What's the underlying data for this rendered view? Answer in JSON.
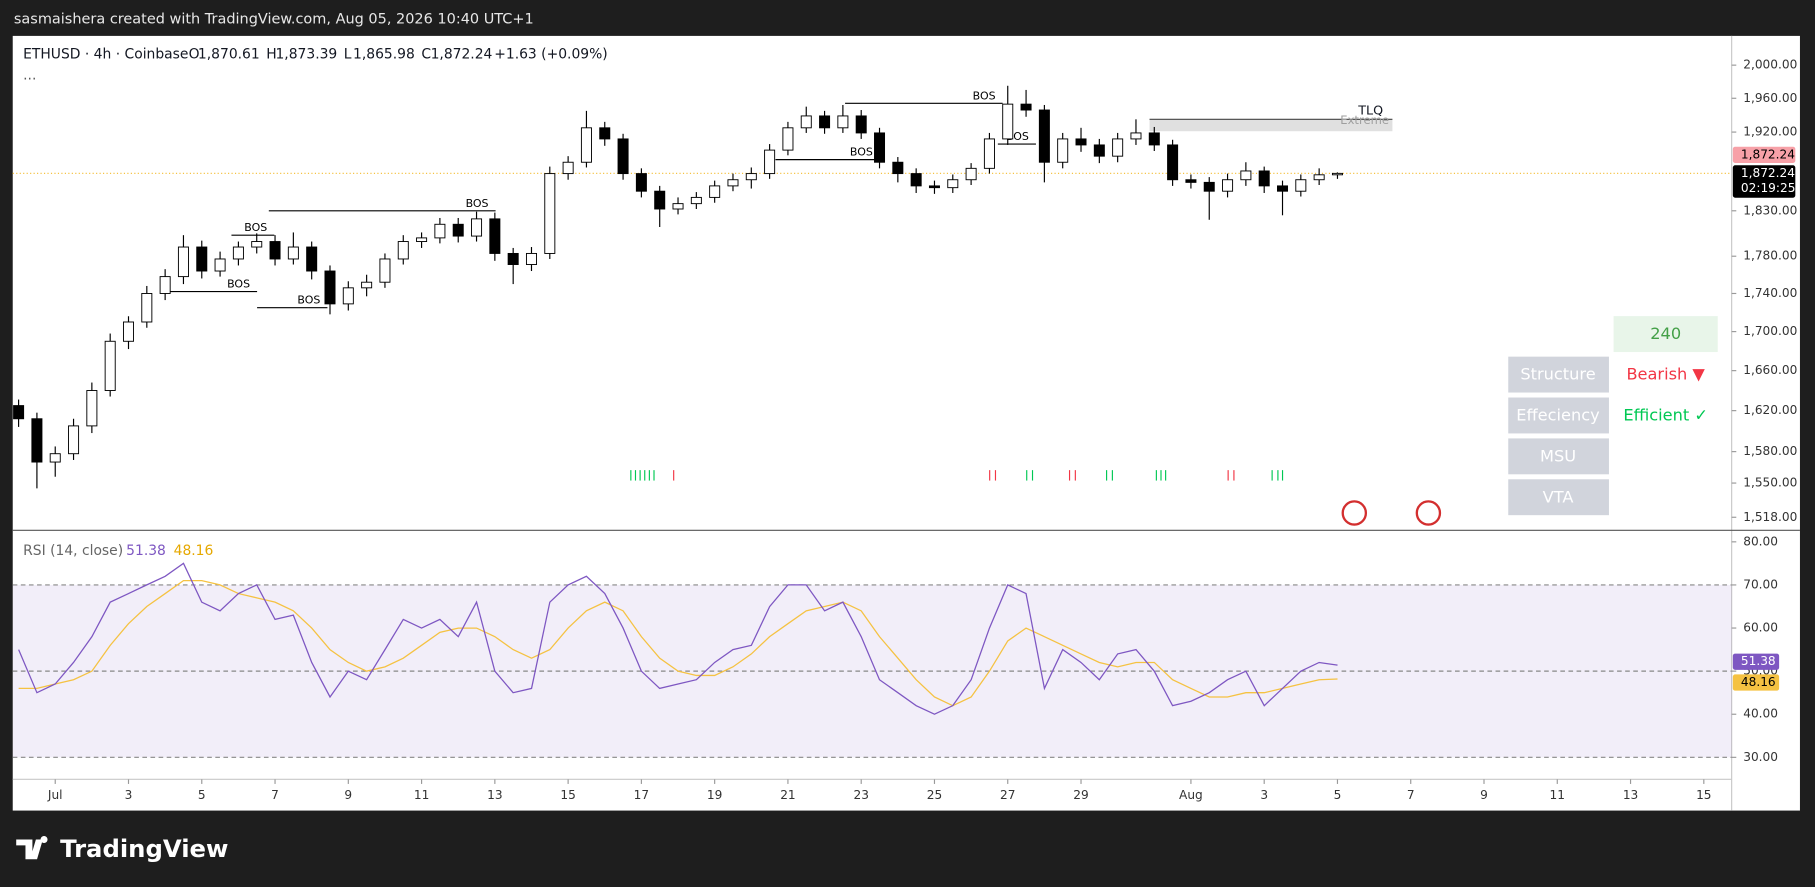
{
  "header": {
    "text": "sasmaishera created with TradingView.com, Aug 05, 2026 10:40 UTC+1"
  },
  "footer": {
    "logo_text": "TradingView"
  },
  "panel": {
    "timeframe": "240",
    "rows": [
      {
        "label": "Structure",
        "value": "Bearish ▼",
        "color": "#f23645"
      },
      {
        "label": "Effeciency",
        "value": "Efficient ✓",
        "color": "#00c853"
      },
      {
        "label": "MSU"
      },
      {
        "label": "VTA"
      }
    ]
  },
  "chart_data": [
    {
      "type": "candlestick",
      "symbol": "ETHUSD · 4h · Coinbase",
      "more": "...",
      "ohlc_legend": [
        {
          "key": "O",
          "label": "1,870.61"
        },
        {
          "key": "H",
          "label": "1,873.39"
        },
        {
          "key": "L",
          "label": "1,865.98"
        },
        {
          "key": "C",
          "label": "1,872.24"
        }
      ],
      "change_label": "+1.63 (+0.09%)",
      "log_scale": true,
      "grid": false,
      "up_color": "#ffffff",
      "down_color": "#000000",
      "wick_color": "#000000",
      "last_line_color": "#f5c242",
      "x": [
        -1,
        -0.5,
        0,
        0.5,
        1,
        1.5,
        2,
        2.5,
        3,
        3.5,
        4,
        4.5,
        5,
        5.5,
        6,
        6.5,
        7,
        7.5,
        8,
        8.5,
        9,
        9.5,
        10,
        10.5,
        11,
        11.5,
        12,
        12.5,
        13,
        13.5,
        14,
        14.5,
        15,
        15.5,
        16,
        16.5,
        17,
        17.5,
        18,
        18.5,
        19,
        19.5,
        20,
        20.5,
        21,
        21.5,
        22,
        22.5,
        23,
        23.5,
        24,
        24.5,
        25,
        25.5,
        26,
        26.5,
        27,
        27.5,
        28,
        28.5,
        29,
        29.5,
        30,
        30.5,
        31,
        31.5,
        32,
        32.5,
        33,
        33.5,
        34,
        34.5,
        35
      ],
      "open": [
        1625,
        1612,
        1570,
        1578,
        1605,
        1640,
        1690,
        1710,
        1740,
        1758,
        1790,
        1764,
        1777,
        1790,
        1796,
        1777,
        1790,
        1764,
        1729,
        1746,
        1752,
        1777,
        1796,
        1800,
        1815,
        1802,
        1821,
        1783,
        1771,
        1783,
        1872,
        1885,
        1925,
        1912,
        1872,
        1852,
        1832,
        1838,
        1845,
        1858,
        1865,
        1872,
        1899,
        1925,
        1939,
        1925,
        1939,
        1919,
        1885,
        1872,
        1858,
        1856,
        1865,
        1878,
        1912,
        1953,
        1946,
        1885,
        1912,
        1905,
        1892,
        1912,
        1919,
        1905,
        1865,
        1862,
        1852,
        1865,
        1875,
        1858,
        1852,
        1865,
        1870.61
      ],
      "high": [
        1631,
        1618,
        1585,
        1612,
        1648,
        1698,
        1716,
        1748,
        1766,
        1803,
        1797,
        1785,
        1796,
        1805,
        1803,
        1806,
        1796,
        1770,
        1753,
        1760,
        1783,
        1803,
        1806,
        1822,
        1822,
        1829,
        1828,
        1789,
        1790,
        1880,
        1892,
        1945,
        1932,
        1918,
        1878,
        1858,
        1845,
        1851,
        1864,
        1872,
        1879,
        1906,
        1932,
        1950,
        1945,
        1952,
        1946,
        1925,
        1891,
        1878,
        1864,
        1871,
        1884,
        1919,
        1975,
        1970,
        1952,
        1919,
        1925,
        1912,
        1919,
        1935,
        1926,
        1911,
        1871,
        1868,
        1872,
        1885,
        1880,
        1864,
        1871,
        1878,
        1873.39
      ],
      "low": [
        1604,
        1545,
        1556,
        1572,
        1598,
        1634,
        1682,
        1704,
        1733,
        1750,
        1756,
        1758,
        1770,
        1783,
        1770,
        1771,
        1755,
        1718,
        1722,
        1737,
        1746,
        1771,
        1789,
        1794,
        1795,
        1796,
        1775,
        1750,
        1764,
        1777,
        1865,
        1879,
        1904,
        1865,
        1845,
        1812,
        1826,
        1832,
        1839,
        1852,
        1855,
        1866,
        1893,
        1919,
        1918,
        1919,
        1912,
        1878,
        1862,
        1850,
        1849,
        1850,
        1859,
        1872,
        1905,
        1938,
        1862,
        1878,
        1897,
        1884,
        1885,
        1905,
        1898,
        1858,
        1855,
        1820,
        1845,
        1858,
        1850,
        1825,
        1846,
        1859,
        1865.98
      ],
      "close": [
        1612,
        1570,
        1578,
        1605,
        1640,
        1690,
        1710,
        1740,
        1758,
        1790,
        1764,
        1777,
        1790,
        1796,
        1777,
        1790,
        1764,
        1729,
        1746,
        1752,
        1777,
        1796,
        1800,
        1815,
        1802,
        1821,
        1783,
        1771,
        1783,
        1872,
        1885,
        1925,
        1912,
        1872,
        1852,
        1832,
        1838,
        1845,
        1858,
        1865,
        1872,
        1899,
        1925,
        1939,
        1925,
        1939,
        1919,
        1885,
        1872,
        1858,
        1856,
        1865,
        1878,
        1912,
        1953,
        1946,
        1885,
        1912,
        1905,
        1892,
        1912,
        1919,
        1905,
        1865,
        1862,
        1852,
        1865,
        1875,
        1858,
        1852,
        1865,
        1870.61,
        1872.24
      ],
      "xlim": [
        -1.16,
        45.76
      ],
      "xticks": [
        {
          "value": 0,
          "label": "Jul"
        },
        {
          "value": 2,
          "label": "3"
        },
        {
          "value": 4,
          "label": "5"
        },
        {
          "value": 6,
          "label": "7"
        },
        {
          "value": 8,
          "label": "9"
        },
        {
          "value": 10,
          "label": "11"
        },
        {
          "value": 12,
          "label": "13"
        },
        {
          "value": 14,
          "label": "15"
        },
        {
          "value": 16,
          "label": "17"
        },
        {
          "value": 18,
          "label": "19"
        },
        {
          "value": 20,
          "label": "21"
        },
        {
          "value": 22,
          "label": "23"
        },
        {
          "value": 24,
          "label": "25"
        },
        {
          "value": 26,
          "label": "27"
        },
        {
          "value": 28,
          "label": "29"
        },
        {
          "value": 31,
          "label": "Aug"
        },
        {
          "value": 33,
          "label": "3"
        },
        {
          "value": 35,
          "label": "5"
        },
        {
          "value": 37,
          "label": "7"
        },
        {
          "value": 39,
          "label": "9"
        },
        {
          "value": 41,
          "label": "11"
        },
        {
          "value": 43,
          "label": "13"
        },
        {
          "value": 45,
          "label": "15"
        }
      ],
      "ylim": [
        1507,
        2036
      ],
      "yticks": [
        {
          "value": 2000,
          "label": "2,000.00"
        },
        {
          "value": 1960,
          "label": "1,960.00"
        },
        {
          "value": 1920,
          "label": "1,920.00"
        },
        {
          "value": 1830,
          "label": "1,830.00"
        },
        {
          "value": 1780,
          "label": "1,780.00"
        },
        {
          "value": 1740,
          "label": "1,740.00"
        },
        {
          "value": 1700,
          "label": "1,700.00"
        },
        {
          "value": 1660,
          "label": "1,660.00"
        },
        {
          "value": 1620,
          "label": "1,620.00"
        },
        {
          "value": 1580,
          "label": "1,580.00"
        },
        {
          "value": 1550,
          "label": "1,550.00"
        },
        {
          "value": 1518,
          "label": "1,518.00"
        }
      ],
      "price_tags": [
        {
          "value": 1872.24,
          "label": "1,872.24",
          "color": "#f7a1a8",
          "text_color": "#000000"
        },
        {
          "value": 1872.24,
          "label": "1,872.24",
          "sublabel": "02:19:25",
          "color": "#000000",
          "text_color": "#ffffff"
        }
      ],
      "bos": [
        {
          "label": "BOS",
          "price": 1803,
          "x0": 4.81,
          "x1": 5.98
        },
        {
          "label": "BOS",
          "price": 1830,
          "x0": 5.83,
          "x1": 12.02
        },
        {
          "label": "BOS",
          "price": 1742,
          "x0": 3.01,
          "x1": 5.51
        },
        {
          "label": "BOS",
          "price": 1725,
          "x0": 5.51,
          "x1": 7.43
        },
        {
          "label": "BOS",
          "price": 1954,
          "x0": 21.56,
          "x1": 25.86
        },
        {
          "label": "BOS",
          "price": 1888,
          "x0": 19.66,
          "x1": 22.51
        },
        {
          "label": "BOS",
          "price": 1906,
          "x0": 25.73,
          "x1": 26.77
        }
      ],
      "tlq": {
        "label": "TLQ",
        "sublabel": "Extreme",
        "price_top": 1935,
        "price_bottom": 1921,
        "x0": 29.87,
        "x1": 36.5
      }
    },
    {
      "type": "line",
      "title": "RSI (14, close)",
      "x": [
        -1,
        -0.5,
        0,
        0.5,
        1,
        1.5,
        2,
        2.5,
        3,
        3.5,
        4,
        4.5,
        5,
        5.5,
        6,
        6.5,
        7,
        7.5,
        8,
        8.5,
        9,
        9.5,
        10,
        10.5,
        11,
        11.5,
        12,
        12.5,
        13,
        13.5,
        14,
        14.5,
        15,
        15.5,
        16,
        16.5,
        17,
        17.5,
        18,
        18.5,
        19,
        19.5,
        20,
        20.5,
        21,
        21.5,
        22,
        22.5,
        23,
        23.5,
        24,
        24.5,
        25,
        25.5,
        26,
        26.5,
        27,
        27.5,
        28,
        28.5,
        29,
        29.5,
        30,
        30.5,
        31,
        31.5,
        32,
        32.5,
        33,
        33.5,
        34,
        34.5,
        35
      ],
      "series": [
        {
          "color": "#7e57c2",
          "values": [
            55,
            45,
            47,
            52,
            58,
            66,
            68,
            70,
            72,
            75,
            66,
            64,
            68,
            70,
            62,
            63,
            52,
            44,
            50,
            48,
            55,
            62,
            60,
            62,
            58,
            66,
            50,
            45,
            46,
            66,
            70,
            72,
            68,
            60,
            50,
            46,
            47,
            48,
            52,
            55,
            56,
            65,
            70,
            70,
            64,
            66,
            58,
            48,
            45,
            42,
            40,
            42,
            48,
            60,
            70,
            68,
            46,
            55,
            52,
            48,
            54,
            55,
            50,
            42,
            43,
            45,
            48,
            50,
            42,
            46,
            50,
            52,
            51.38
          ]
        },
        {
          "color": "#f5c242",
          "values": [
            46,
            46,
            47,
            48,
            50,
            56,
            61,
            65,
            68,
            71,
            71,
            70,
            68,
            67,
            66,
            64,
            60,
            55,
            52,
            50,
            51,
            53,
            56,
            59,
            60,
            60,
            58,
            55,
            53,
            55,
            60,
            64,
            66,
            64,
            58,
            53,
            50,
            49,
            49,
            51,
            54,
            58,
            61,
            64,
            65,
            66,
            64,
            58,
            53,
            48,
            44,
            42,
            44,
            50,
            57,
            60,
            58,
            56,
            54,
            52,
            51,
            52,
            52,
            48,
            46,
            44,
            44,
            45,
            45,
            46,
            47,
            48,
            48.16
          ]
        }
      ],
      "band": [
        30,
        70
      ],
      "band_color": "#7e57c2",
      "levels": [
        70,
        50,
        30
      ],
      "ylim": [
        24.9,
        82.4
      ],
      "yticks": [
        {
          "value": 80,
          "label": "80.00"
        },
        {
          "value": 70,
          "label": "70.00"
        },
        {
          "value": 60,
          "label": "60.00"
        },
        {
          "value": 50,
          "label": "50.00"
        },
        {
          "value": 40,
          "label": "40.00"
        },
        {
          "value": 30,
          "label": "30.00"
        }
      ]
    }
  ]
}
